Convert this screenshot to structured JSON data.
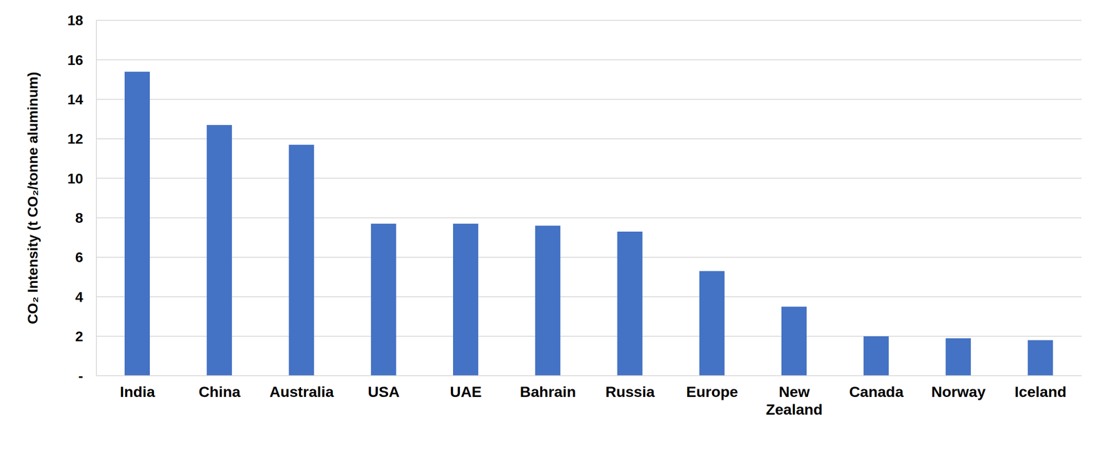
{
  "chart_data": {
    "type": "bar",
    "y_label": "CO₂ Intensity (t CO₂/tonne aluminum)",
    "categories": [
      "India",
      "China",
      "Australia",
      "USA",
      "UAE",
      "Bahrain",
      "Russia",
      "Europe",
      "New Zealand",
      "Canada",
      "Norway",
      "Iceland"
    ],
    "values": [
      15.4,
      12.7,
      11.7,
      7.7,
      7.7,
      7.6,
      7.3,
      5.3,
      3.5,
      2.0,
      1.9,
      1.8
    ],
    "color": "#4472c4",
    "ylim": [
      0,
      18
    ],
    "yticks": [
      {
        "value": 0,
        "label": "-"
      },
      2,
      4,
      6,
      8,
      10,
      12,
      14,
      16,
      18
    ],
    "grid": true
  }
}
